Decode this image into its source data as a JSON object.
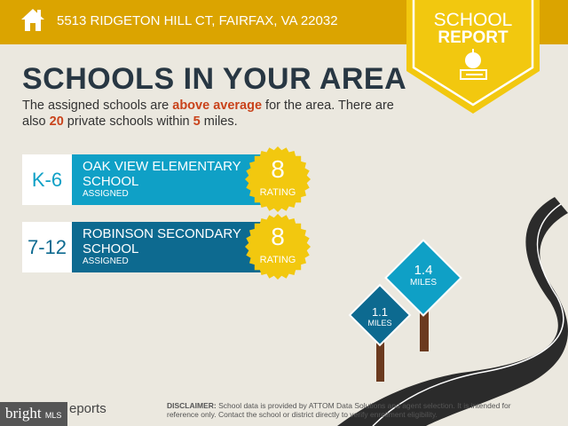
{
  "header": {
    "address": "5513 RIDGETON HILL CT, FAIRFAX, VA 22032",
    "icon": "home-icon"
  },
  "badge": {
    "line1": "SCHOOL",
    "line2": "REPORT",
    "icon": "apple-on-book-icon"
  },
  "title": "SCHOOLS IN YOUR AREA",
  "description": {
    "p1": "The assigned schools are ",
    "highlight1": "above average",
    "p2": " for the area. There are also ",
    "highlight2": "20",
    "p3": " private schools within ",
    "highlight3": "5",
    "p4": " miles."
  },
  "schools": [
    {
      "grade": "K-6",
      "name": "OAK VIEW ELEMENTARY SCHOOL",
      "status": "ASSIGNED",
      "rating": "8",
      "rating_label": "RATING",
      "color": "#0fa0c6"
    },
    {
      "grade": "7-12",
      "name": "ROBINSON SECONDARY SCHOOL",
      "status": "ASSIGNED",
      "rating": "8",
      "rating_label": "RATING",
      "color": "#0d6a90"
    }
  ],
  "signs": [
    {
      "value": "1.4",
      "unit": "MILES"
    },
    {
      "value": "1.1",
      "unit": "MILES"
    }
  ],
  "footer": {
    "label": "DISCLAIMER:",
    "text": " School data is provided by ATTOM Data Solutions and agent selection. It is intended for reference only. Contact the school or district directly to verify enrollment eligibility."
  },
  "logo": {
    "brand": "bright",
    "sub": "MLS",
    "reports": "eports"
  },
  "colors": {
    "topbar": "#dba400",
    "badge": "#f2c80f",
    "accent": "#c9431b",
    "seal": "#f2c80f"
  }
}
